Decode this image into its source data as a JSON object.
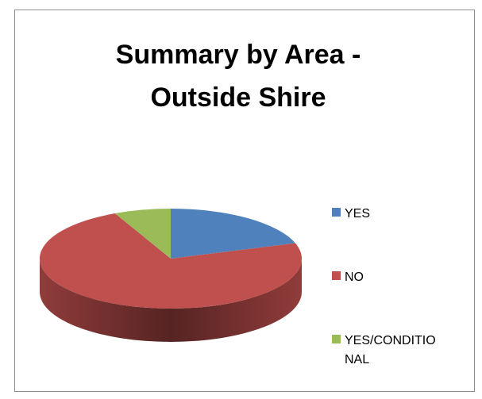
{
  "chart_data": {
    "type": "pie",
    "title": "Summary by Area - Outside Shire",
    "categories": [
      "YES",
      "NO",
      "YES/CONDITIONAL"
    ],
    "values": [
      20,
      73,
      7
    ],
    "colors": [
      "#4f81bd",
      "#c0504d",
      "#9bbb59"
    ],
    "legend": "right"
  }
}
